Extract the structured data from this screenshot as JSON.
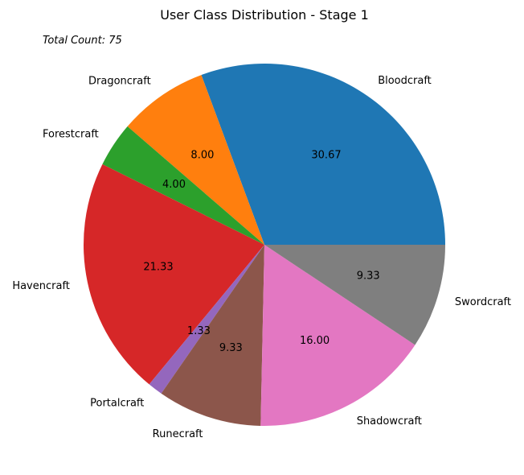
{
  "chart_data": {
    "type": "pie",
    "title": "User Class Distribution - Stage 1",
    "annotation": "Total Count: 75",
    "categories": [
      "Bloodcraft",
      "Dragoncraft",
      "Forestcraft",
      "Havencraft",
      "Portalcraft",
      "Runecraft",
      "Shadowcraft",
      "Swordcraft"
    ],
    "values": [
      30.67,
      8.0,
      4.0,
      21.33,
      1.33,
      9.33,
      16.0,
      9.33
    ],
    "value_labels": [
      "30.67",
      "8.00",
      "4.00",
      "21.33",
      "1.33",
      "9.33",
      "16.00",
      "9.33"
    ],
    "colors": [
      "#1f77b4",
      "#ff7f0e",
      "#2ca02c",
      "#d62728",
      "#9467bd",
      "#8c564b",
      "#e377c2",
      "#7f7f7f"
    ],
    "start_angle": "0 degrees (3 o'clock)",
    "direction": "counterclockwise",
    "legend": "none"
  }
}
